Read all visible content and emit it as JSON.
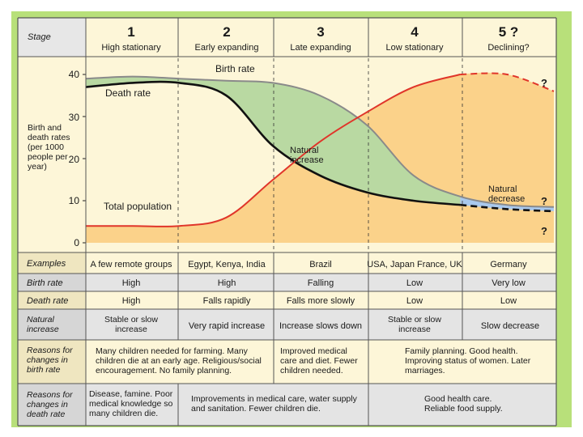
{
  "header": {
    "stage_label": "Stage",
    "stages": [
      {
        "number": "1",
        "name": "High stationary"
      },
      {
        "number": "2",
        "name": "Early expanding"
      },
      {
        "number": "3",
        "name": "Late expanding"
      },
      {
        "number": "4",
        "name": "Low stationary"
      },
      {
        "number": "5 ?",
        "name": "Declining?"
      }
    ]
  },
  "chart_data": {
    "type": "line",
    "title": "",
    "ylabel": "Birth and death rates (per 1000 people per year)",
    "xlabel": "",
    "ylim": [
      0,
      40
    ],
    "yticks": [
      "0",
      "10",
      "20",
      "30",
      "40"
    ],
    "x": [
      0,
      0.5,
      1,
      1.5,
      2,
      2.5,
      3,
      3.5,
      4,
      4.5,
      5
    ],
    "series": [
      {
        "name": "Birth rate",
        "values": [
          39,
          39.5,
          39,
          38.5,
          38,
          35,
          28,
          16,
          11,
          9,
          8.5
        ]
      },
      {
        "name": "Death rate",
        "values": [
          37,
          38,
          38,
          35,
          23,
          16,
          12,
          10,
          9,
          8,
          7.5
        ]
      },
      {
        "name": "Total population",
        "values": [
          4,
          4,
          4,
          6,
          15,
          24,
          31,
          37,
          40,
          40,
          36
        ]
      }
    ],
    "annotations": {
      "birth_rate": "Birth rate",
      "death_rate": "Death rate",
      "total_population": "Total population",
      "natural_increase": "Natural increase",
      "natural_decrease": "Natural decrease",
      "q1": "?",
      "q2": "?",
      "q3": "?"
    },
    "colors": {
      "population_fill": "#fbd28a",
      "increase_fill": "#b9d9a2",
      "decrease_fill": "#a9c9ee",
      "birth_line": "#8a8a8a",
      "death_line": "#111111",
      "population_line": "#e0352a"
    }
  },
  "table": {
    "rows": [
      {
        "label": "Examples",
        "cells": [
          "A few remote groups",
          "Egypt, Kenya, India",
          "Brazil",
          "USA, Japan France, UK",
          "Germany"
        ]
      },
      {
        "label": "Birth rate",
        "cells": [
          "High",
          "High",
          "Falling",
          "Low",
          "Very low"
        ]
      },
      {
        "label": "Death rate",
        "cells": [
          "High",
          "Falls rapidly",
          "Falls more slowly",
          "Low",
          "Low"
        ]
      },
      {
        "label": "Natural increase",
        "cells": [
          "Stable or slow increase",
          "Very rapid increase",
          "Increase slows down",
          "Stable or slow increase",
          "Slow decrease"
        ]
      }
    ],
    "reasons_birth": {
      "label": "Reasons for changes in birth rate",
      "stage12": "Many children needed for farming. Many children die at an early age. Religious/social encouragement. No family planning.",
      "stage3": "Improved medical care and diet. Fewer children needed.",
      "stage45": "Family planning. Good health. Improving status of women. Later marriages."
    },
    "reasons_death": {
      "label": "Reasons for changes in death rate",
      "stage1": "Disease, famine. Poor medical knowledge so many children die.",
      "stage23": "Improvements in medical care, water supply and sanitation. Fewer children die.",
      "stage45": "Good health care. Reliable food supply."
    }
  }
}
